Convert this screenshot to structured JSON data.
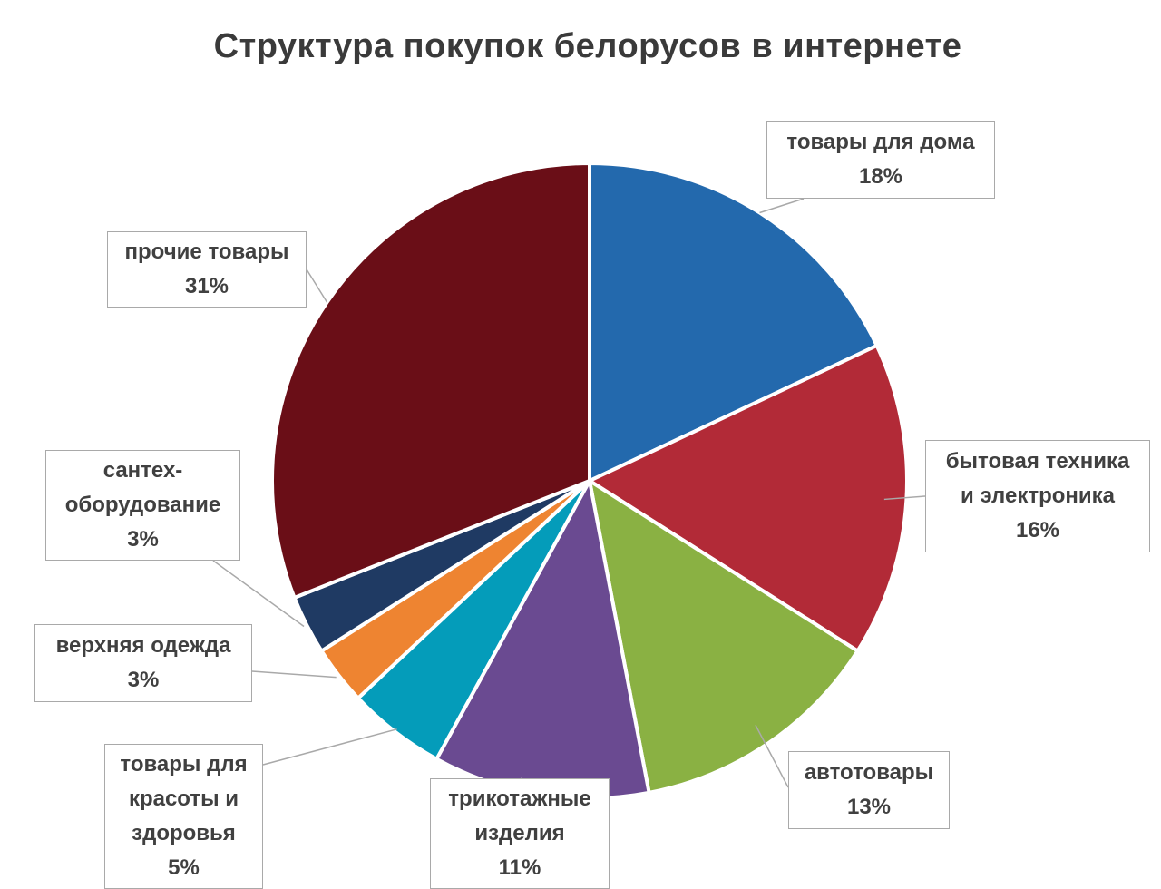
{
  "chart_data": {
    "type": "pie",
    "title": "Структура покупок белорусов в интернете",
    "slices": [
      {
        "label": "товары для дома",
        "value": 18,
        "value_label": "18%",
        "color": "#2369ad"
      },
      {
        "label": "бытовая техника\nи электроника",
        "value": 16,
        "value_label": "16%",
        "color": "#b22a37"
      },
      {
        "label": "автотовары",
        "value": 13,
        "value_label": "13%",
        "color": "#8ab143"
      },
      {
        "label": "трикотажные\nизделия",
        "value": 11,
        "value_label": "11%",
        "color": "#6a4a91"
      },
      {
        "label": "товары для\nкрасоты и\nздоровья",
        "value": 5,
        "value_label": "5%",
        "color": "#049cba"
      },
      {
        "label": "верхняя одежда",
        "value": 3,
        "value_label": "3%",
        "color": "#ee8431"
      },
      {
        "label": "сантех-\nоборудование",
        "value": 3,
        "value_label": "3%",
        "color": "#1f3a63"
      },
      {
        "label": "прочие товары",
        "value": 31,
        "value_label": "31%",
        "color": "#6a0e17"
      }
    ],
    "start_angle_deg": 0,
    "direction": "clockwise",
    "legend": "none"
  }
}
